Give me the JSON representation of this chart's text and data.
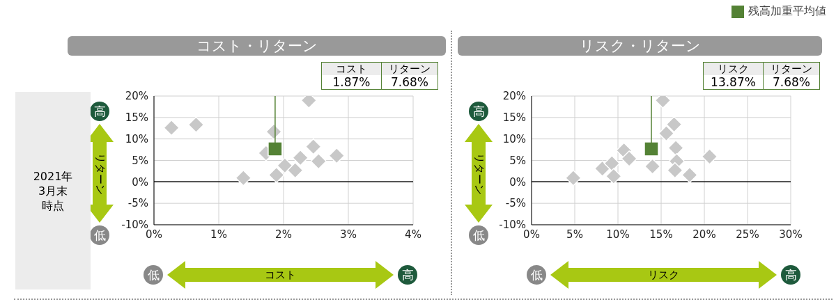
{
  "chart_data": [
    {
      "type": "scatter",
      "title": "コスト・リターン",
      "xlabel": "コスト",
      "ylabel": "リターン",
      "annotations": [
        "コスト",
        "リターン",
        {
          "text": "1.87%",
          "x": 1.87,
          "y": 7.68
        },
        "7.68%",
        "高",
        "低",
        "低",
        "高",
        "2021年3月末時点"
      ],
      "series": [
        {
          "color": "#c8c8c8",
          "x": [
            0.27,
            0.65,
            2.39,
            1.85,
            1.73,
            1.38,
            2.02,
            1.89,
            2.18,
            2.26,
            2.46,
            2.54,
            2.82
          ],
          "values": [
            12.6,
            13.3,
            19.0,
            11.7,
            6.7,
            0.9,
            3.8,
            1.6,
            2.7,
            5.6,
            8.2,
            4.8,
            6.1
          ]
        },
        {
          "color": "#548235",
          "marker": "square",
          "x": [
            1.87
          ],
          "values": [
            7.68
          ]
        }
      ],
      "xlim": [
        0,
        4
      ],
      "xticks": [
        {
          "value": 0,
          "label": "0%"
        },
        {
          "value": 1,
          "label": "1%"
        },
        {
          "value": 2,
          "label": "2%"
        },
        {
          "value": 3,
          "label": "3%"
        },
        {
          "value": 4,
          "label": "4%"
        }
      ],
      "ylim": [
        -10,
        20
      ],
      "yticks": [
        {
          "value": -10,
          "label": "-10%"
        },
        {
          "value": -5,
          "label": "-5%"
        },
        {
          "value": 0,
          "label": "0%"
        },
        {
          "value": 5,
          "label": "5%"
        },
        {
          "value": 10,
          "label": "10%"
        },
        {
          "value": 15,
          "label": "15%"
        },
        {
          "value": 20,
          "label": "20%"
        }
      ],
      "ref_lines": [
        {
          "axis": "y",
          "value": 0,
          "color": "#000000"
        }
      ],
      "grid": true,
      "marker": "diamond",
      "legend": false
    },
    {
      "type": "scatter",
      "title": "リスク・リターン",
      "xlabel": "リスク",
      "ylabel": "リターン",
      "annotations": [
        "リスク",
        "リターン",
        {
          "text": "13.87%",
          "x": 13.87,
          "y": 7.68
        },
        "7.68%",
        "高",
        "低",
        "低",
        "高"
      ],
      "series": [
        {
          "color": "#c8c8c8",
          "x": [
            4.83,
            8.2,
            9.3,
            9.5,
            10.7,
            11.3,
            15.2,
            16.5,
            15.6,
            16.7,
            16.8,
            14.0,
            16.6,
            18.3,
            20.6
          ],
          "values": [
            0.9,
            3.1,
            4.3,
            1.3,
            7.3,
            5.4,
            19.0,
            13.4,
            11.3,
            7.9,
            4.8,
            3.6,
            2.7,
            1.6,
            5.9
          ]
        },
        {
          "name": "残高加重平均値",
          "color": "#548235",
          "marker": "square",
          "x": [
            13.87
          ],
          "values": [
            7.68
          ]
        }
      ],
      "xlim": [
        0,
        30
      ],
      "xticks": [
        {
          "value": 0,
          "label": "0%"
        },
        {
          "value": 5,
          "label": "5%"
        },
        {
          "value": 10,
          "label": "10%"
        },
        {
          "value": 15,
          "label": "15%"
        },
        {
          "value": 20,
          "label": "20%"
        },
        {
          "value": 25,
          "label": "25%"
        },
        {
          "value": 30,
          "label": "30%"
        }
      ],
      "ylim": [
        -10,
        20
      ],
      "yticks": [
        {
          "value": -10,
          "label": "-10%"
        },
        {
          "value": -5,
          "label": "-5%"
        },
        {
          "value": 0,
          "label": "0%"
        },
        {
          "value": 5,
          "label": "5%"
        },
        {
          "value": 10,
          "label": "10%"
        },
        {
          "value": 15,
          "label": "15%"
        },
        {
          "value": 20,
          "label": "20%"
        }
      ],
      "ref_lines": [
        {
          "axis": "y",
          "value": 0,
          "color": "#000000"
        }
      ],
      "grid": true,
      "marker": "diamond",
      "legend": "top right"
    }
  ]
}
